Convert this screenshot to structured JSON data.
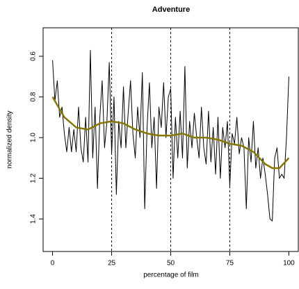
{
  "chart_data": {
    "type": "line",
    "title": "Adventure",
    "x_label": "percentage of film",
    "y_label": "normalized density",
    "y_inverted": true,
    "xlim": [
      -4,
      104
    ],
    "ylim": [
      0.46,
      1.56
    ],
    "xticks": [
      0,
      25,
      50,
      75,
      100
    ],
    "yticks": [
      0.6,
      0.8,
      {
        "value": 1.0,
        "label": "1.0"
      },
      1.2,
      1.4
    ],
    "vlines": [
      25,
      50,
      75
    ],
    "series": [
      {
        "name": "density",
        "color": "#000000",
        "x": [
          0,
          1,
          2,
          3,
          4,
          5,
          6,
          7,
          8,
          9,
          10,
          11,
          12,
          13,
          14,
          15,
          16,
          17,
          18,
          19,
          20,
          21,
          22,
          23,
          24,
          25,
          26,
          27,
          28,
          29,
          30,
          31,
          32,
          33,
          34,
          35,
          36,
          37,
          38,
          39,
          40,
          41,
          42,
          43,
          44,
          45,
          46,
          47,
          48,
          49,
          50,
          51,
          52,
          53,
          54,
          55,
          56,
          57,
          58,
          59,
          60,
          61,
          62,
          63,
          64,
          65,
          66,
          67,
          68,
          69,
          70,
          71,
          72,
          73,
          74,
          75,
          76,
          77,
          78,
          79,
          80,
          81,
          82,
          83,
          84,
          85,
          86,
          87,
          88,
          89,
          90,
          91,
          92,
          93,
          94,
          95,
          96,
          97,
          98,
          99,
          100
        ],
        "values": [
          0.62,
          0.82,
          0.72,
          0.9,
          0.85,
          0.98,
          1.07,
          0.95,
          1.07,
          0.96,
          1.07,
          0.85,
          1.05,
          1.12,
          0.9,
          1.12,
          0.57,
          1.1,
          0.85,
          1.25,
          0.9,
          0.72,
          1.05,
          0.92,
          0.63,
          1.08,
          0.8,
          1.28,
          0.92,
          1.05,
          0.75,
          1.05,
          0.88,
          0.72,
          0.98,
          1.1,
          0.85,
          1.0,
          0.68,
          1.35,
          0.95,
          0.73,
          1.05,
          0.9,
          1.25,
          0.85,
          0.95,
          0.73,
          1.0,
          0.8,
          0.76,
          1.2,
          0.9,
          1.1,
          0.87,
          1.1,
          0.65,
          1.15,
          0.92,
          1.05,
          0.88,
          1.0,
          1.1,
          0.85,
          1.05,
          1.13,
          0.87,
          1.12,
          0.95,
          1.18,
          0.9,
          1.2,
          0.95,
          1.05,
          0.92,
          1.24,
          0.98,
          1.03,
          0.9,
          1.08,
          1.0,
          1.05,
          1.35,
          1.0,
          1.12,
          0.92,
          1.15,
          1.05,
          1.2,
          1.1,
          1.18,
          1.28,
          1.4,
          1.41,
          1.1,
          1.05,
          1.2,
          1.18,
          1.2,
          1.0,
          0.7
        ]
      },
      {
        "name": "smooth",
        "color": "#857600",
        "x": [
          0,
          5,
          10,
          15,
          20,
          25,
          30,
          35,
          40,
          45,
          50,
          55,
          60,
          65,
          70,
          75,
          80,
          85,
          90,
          93,
          96,
          100
        ],
        "values": [
          0.8,
          0.9,
          0.95,
          0.96,
          0.93,
          0.92,
          0.93,
          0.96,
          0.98,
          0.99,
          0.99,
          0.98,
          1.0,
          1.0,
          1.01,
          1.03,
          1.04,
          1.07,
          1.13,
          1.15,
          1.15,
          1.1
        ]
      }
    ]
  }
}
